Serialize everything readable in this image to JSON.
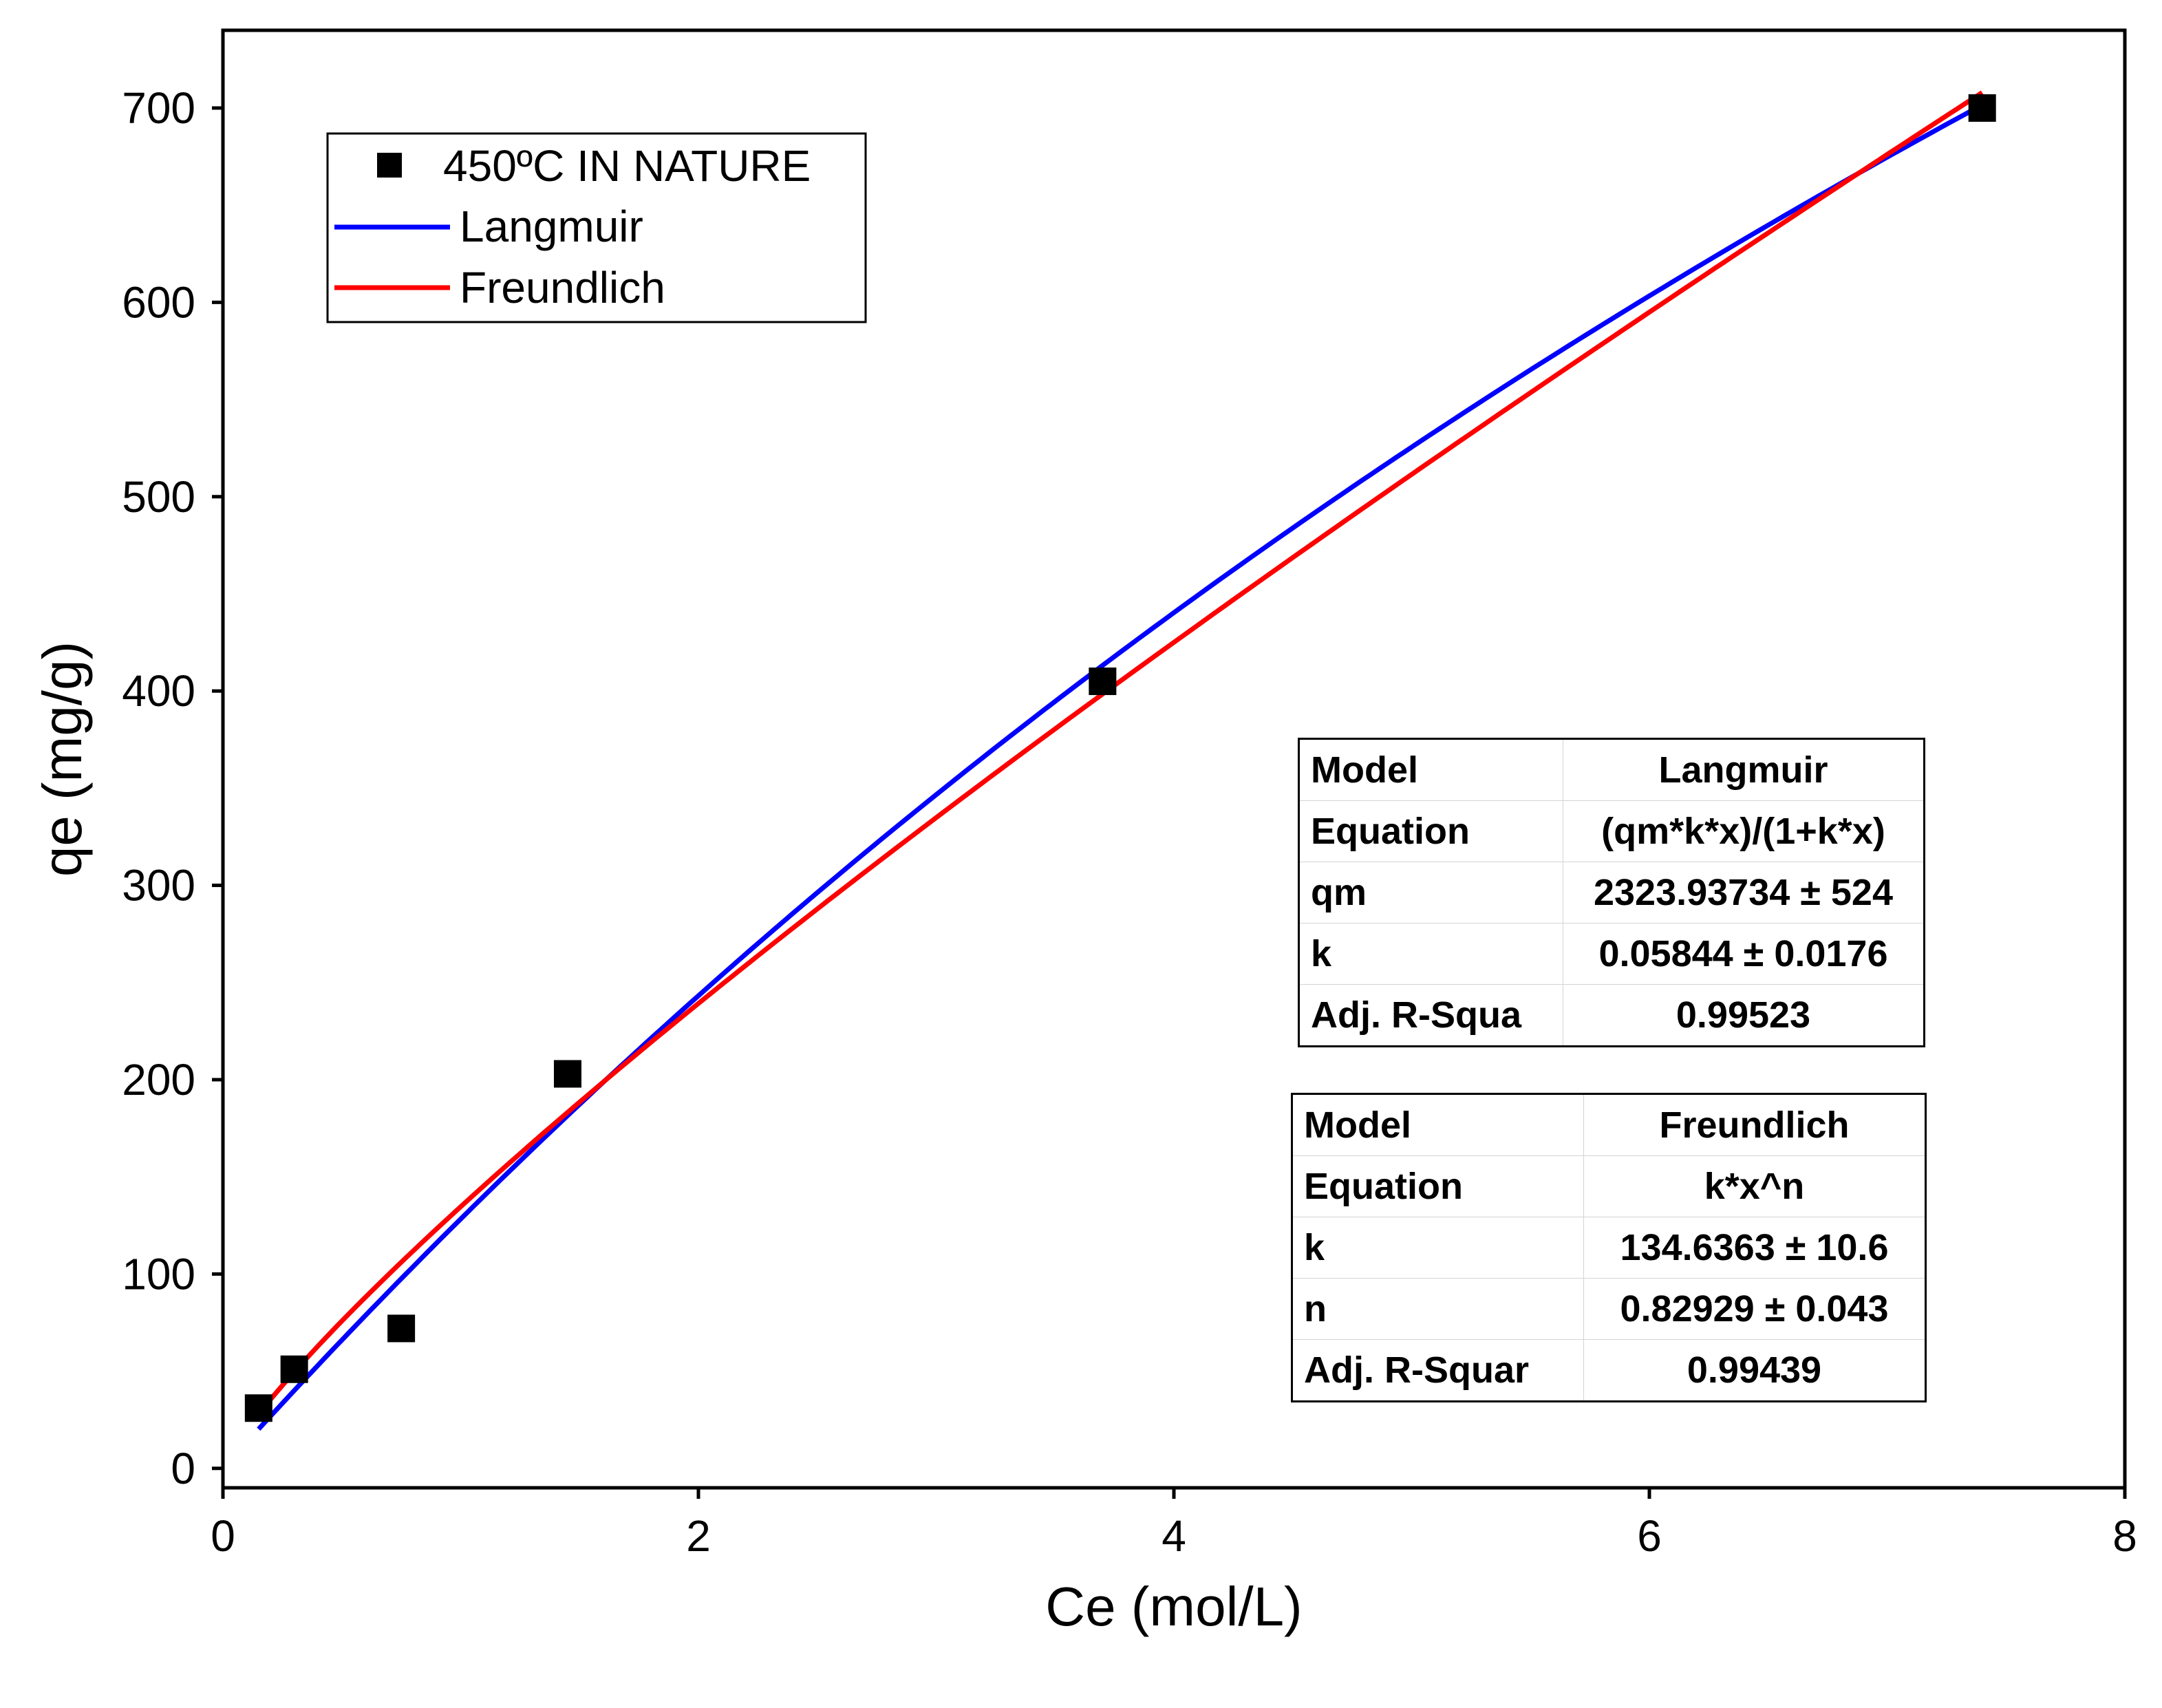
{
  "chart_data": {
    "type": "scatter",
    "title": "",
    "xlabel": "Ce (mol/L)",
    "ylabel": "qe (mg/g)",
    "xlim": [
      0,
      8
    ],
    "ylim": [
      -10,
      740
    ],
    "x_ticks": [
      0,
      2,
      4,
      6,
      8
    ],
    "x_tick_labels": [
      "0",
      "2",
      "4",
      "6",
      "8"
    ],
    "y_ticks": [
      0,
      100,
      200,
      300,
      400,
      500,
      600,
      700
    ],
    "y_tick_labels": [
      "0",
      "100",
      "200",
      "300",
      "400",
      "500",
      "600",
      "700"
    ],
    "grid": false,
    "legend_position": "top-left",
    "series": [
      {
        "name": "450ºC IN NATURE",
        "kind": "scatter",
        "marker": "square",
        "color": "#000000",
        "x": [
          0.15,
          0.3,
          0.75,
          1.45,
          3.7,
          7.4
        ],
        "y": [
          31,
          51,
          72,
          203,
          405,
          700
        ]
      },
      {
        "name": "Langmuir",
        "kind": "line",
        "color": "#0000ff",
        "model": "langmuir",
        "params": {
          "qm": 2323.93734,
          "k": 0.05844
        },
        "x_range": [
          0.15,
          7.4
        ]
      },
      {
        "name": "Freundlich",
        "kind": "line",
        "color": "#ff0000",
        "model": "freundlich",
        "params": {
          "k": 134.6363,
          "n": 0.82929
        },
        "x_range": [
          0.15,
          7.4
        ]
      }
    ]
  },
  "tables": {
    "langmuir": {
      "rows": [
        {
          "key": "Model",
          "value": "Langmuir"
        },
        {
          "key": "Equation",
          "value": "(qm*k*x)/(1+k*x)"
        },
        {
          "key": "qm",
          "value": "2323.93734 ± 524"
        },
        {
          "key": "k",
          "value": "0.05844 ± 0.0176"
        },
        {
          "key": "Adj. R-Squa",
          "value": "0.99523"
        }
      ]
    },
    "freundlich": {
      "rows": [
        {
          "key": "Model",
          "value": "Freundlich"
        },
        {
          "key": "Equation",
          "value": "k*x^n"
        },
        {
          "key": "k",
          "value": "134.6363 ± 10.6"
        },
        {
          "key": "n",
          "value": "0.82929 ± 0.043"
        },
        {
          "key": "Adj. R-Squar",
          "value": "0.99439"
        }
      ]
    }
  }
}
